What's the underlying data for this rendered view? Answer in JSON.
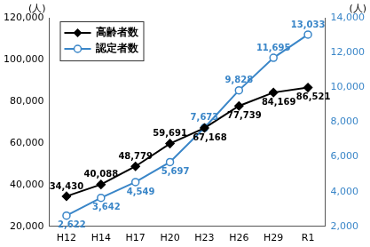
{
  "chart_data": {
    "type": "line",
    "categories": [
      "H12",
      "H14",
      "H17",
      "H20",
      "H23",
      "H26",
      "H29",
      "R1"
    ],
    "ylabel": "(人)",
    "y2label": "(人)",
    "ylim": [
      20000,
      120000
    ],
    "yticks": [
      {
        "value": 20000,
        "label": "20,000"
      },
      {
        "value": 40000,
        "label": "40,000"
      },
      {
        "value": 60000,
        "label": "60,000"
      },
      {
        "value": 80000,
        "label": "80,000"
      },
      {
        "value": 100000,
        "label": "100,000"
      },
      {
        "value": 120000,
        "label": "120,000"
      }
    ],
    "y2lim": [
      2000,
      14000
    ],
    "y2ticks": [
      {
        "value": 2000,
        "label": "2,000"
      },
      {
        "value": 4000,
        "label": "4,000"
      },
      {
        "value": 6000,
        "label": "6,000"
      },
      {
        "value": 8000,
        "label": "8,000"
      },
      {
        "value": 10000,
        "label": "10,000"
      },
      {
        "value": 12000,
        "label": "12,000"
      },
      {
        "value": 14000,
        "label": "14,000"
      }
    ],
    "grid": false,
    "legend": "upper left",
    "data_labels": true,
    "series": [
      {
        "name": "高齢者数",
        "color": "#000000",
        "marker": "diamond",
        "line_style": "solid",
        "values": [
          34430,
          40088,
          48779,
          59691,
          67168,
          77739,
          84169,
          86521
        ],
        "value_labels": [
          "34,430",
          "40,088",
          "48,779",
          "59,691",
          "67,168",
          "77,739",
          "84,169",
          "86,521"
        ]
      },
      {
        "name": "認定者数",
        "color": "#3a86c8",
        "marker": "circle",
        "line_style": "solid",
        "axis": "y2",
        "values": [
          2622,
          3642,
          4549,
          5697,
          7673,
          9828,
          11695,
          13033
        ],
        "value_labels": [
          "2,622",
          "3,642",
          "4,549",
          "5,697",
          "7,673",
          "9,828",
          "11,695",
          "13,033"
        ]
      }
    ]
  }
}
